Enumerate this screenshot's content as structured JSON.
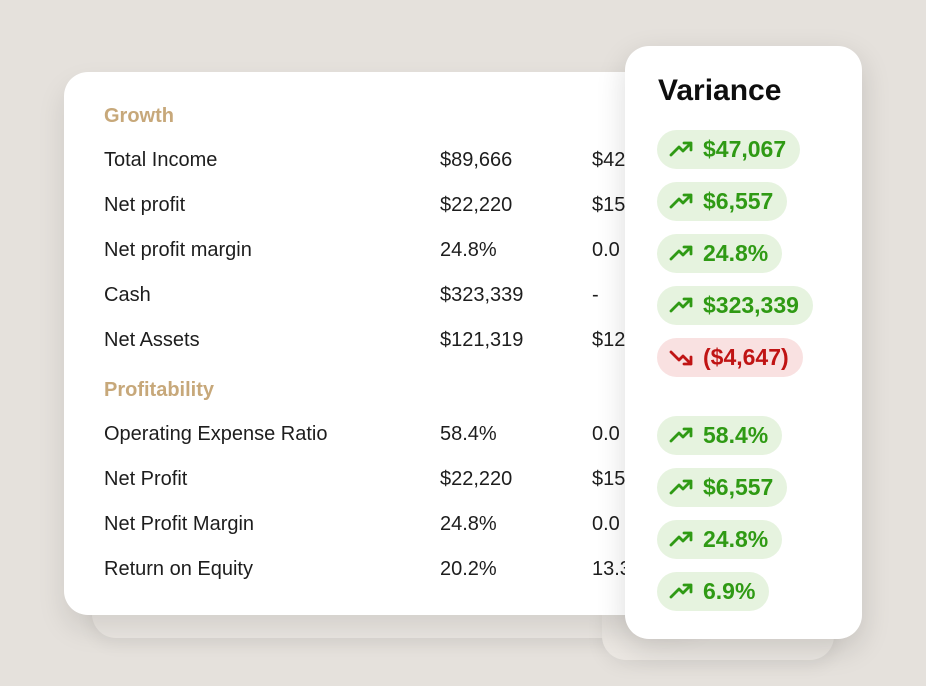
{
  "growth": {
    "title": "Growth",
    "rows": [
      {
        "metric": "Total Income",
        "current": "$89,666",
        "prior": "$42"
      },
      {
        "metric": "Net profit",
        "current": "$22,220",
        "prior": "$15"
      },
      {
        "metric": "Net profit margin",
        "current": "24.8%",
        "prior": "0.0"
      },
      {
        "metric": "Cash",
        "current": "$323,339",
        "prior": "-"
      },
      {
        "metric": "Net Assets",
        "current": "$121,319",
        "prior": "$12"
      }
    ]
  },
  "profitability": {
    "title": "Profitability",
    "rows": [
      {
        "metric": "Operating Expense Ratio",
        "current": "58.4%",
        "prior": "0.0"
      },
      {
        "metric": "Net Profit",
        "current": "$22,220",
        "prior": "$15"
      },
      {
        "metric": "Net Profit Margin",
        "current": "24.8%",
        "prior": "0.0"
      },
      {
        "metric": "Return on Equity",
        "current": "20.2%",
        "prior": "13.3"
      }
    ]
  },
  "variance": {
    "title": "Variance",
    "growth_items": [
      {
        "value": "$47,067",
        "trend": "up",
        "icon": "trend-up-icon",
        "color": "#2f9a14"
      },
      {
        "value": "$6,557",
        "trend": "up",
        "icon": "trend-up-icon",
        "color": "#2f9a14"
      },
      {
        "value": "24.8%",
        "trend": "up",
        "icon": "trend-up-icon",
        "color": "#2f9a14"
      },
      {
        "value": "$323,339",
        "trend": "up",
        "icon": "trend-up-icon",
        "color": "#2f9a14"
      },
      {
        "value": "($4,647)",
        "trend": "down",
        "icon": "trend-down-icon",
        "color": "#c01414"
      }
    ],
    "profitability_items": [
      {
        "value": "58.4%",
        "trend": "up",
        "icon": "trend-up-icon",
        "color": "#2f9a14"
      },
      {
        "value": "$6,557",
        "trend": "up",
        "icon": "trend-up-icon",
        "color": "#2f9a14"
      },
      {
        "value": "24.8%",
        "trend": "up",
        "icon": "trend-up-icon",
        "color": "#2f9a14"
      },
      {
        "value": "6.9%",
        "trend": "up",
        "icon": "trend-up-icon",
        "color": "#2f9a14"
      }
    ]
  },
  "colors": {
    "background": "#e5e1dc",
    "section_title": "#c7a87a",
    "positive": "#2f9a14",
    "negative": "#c01414"
  }
}
